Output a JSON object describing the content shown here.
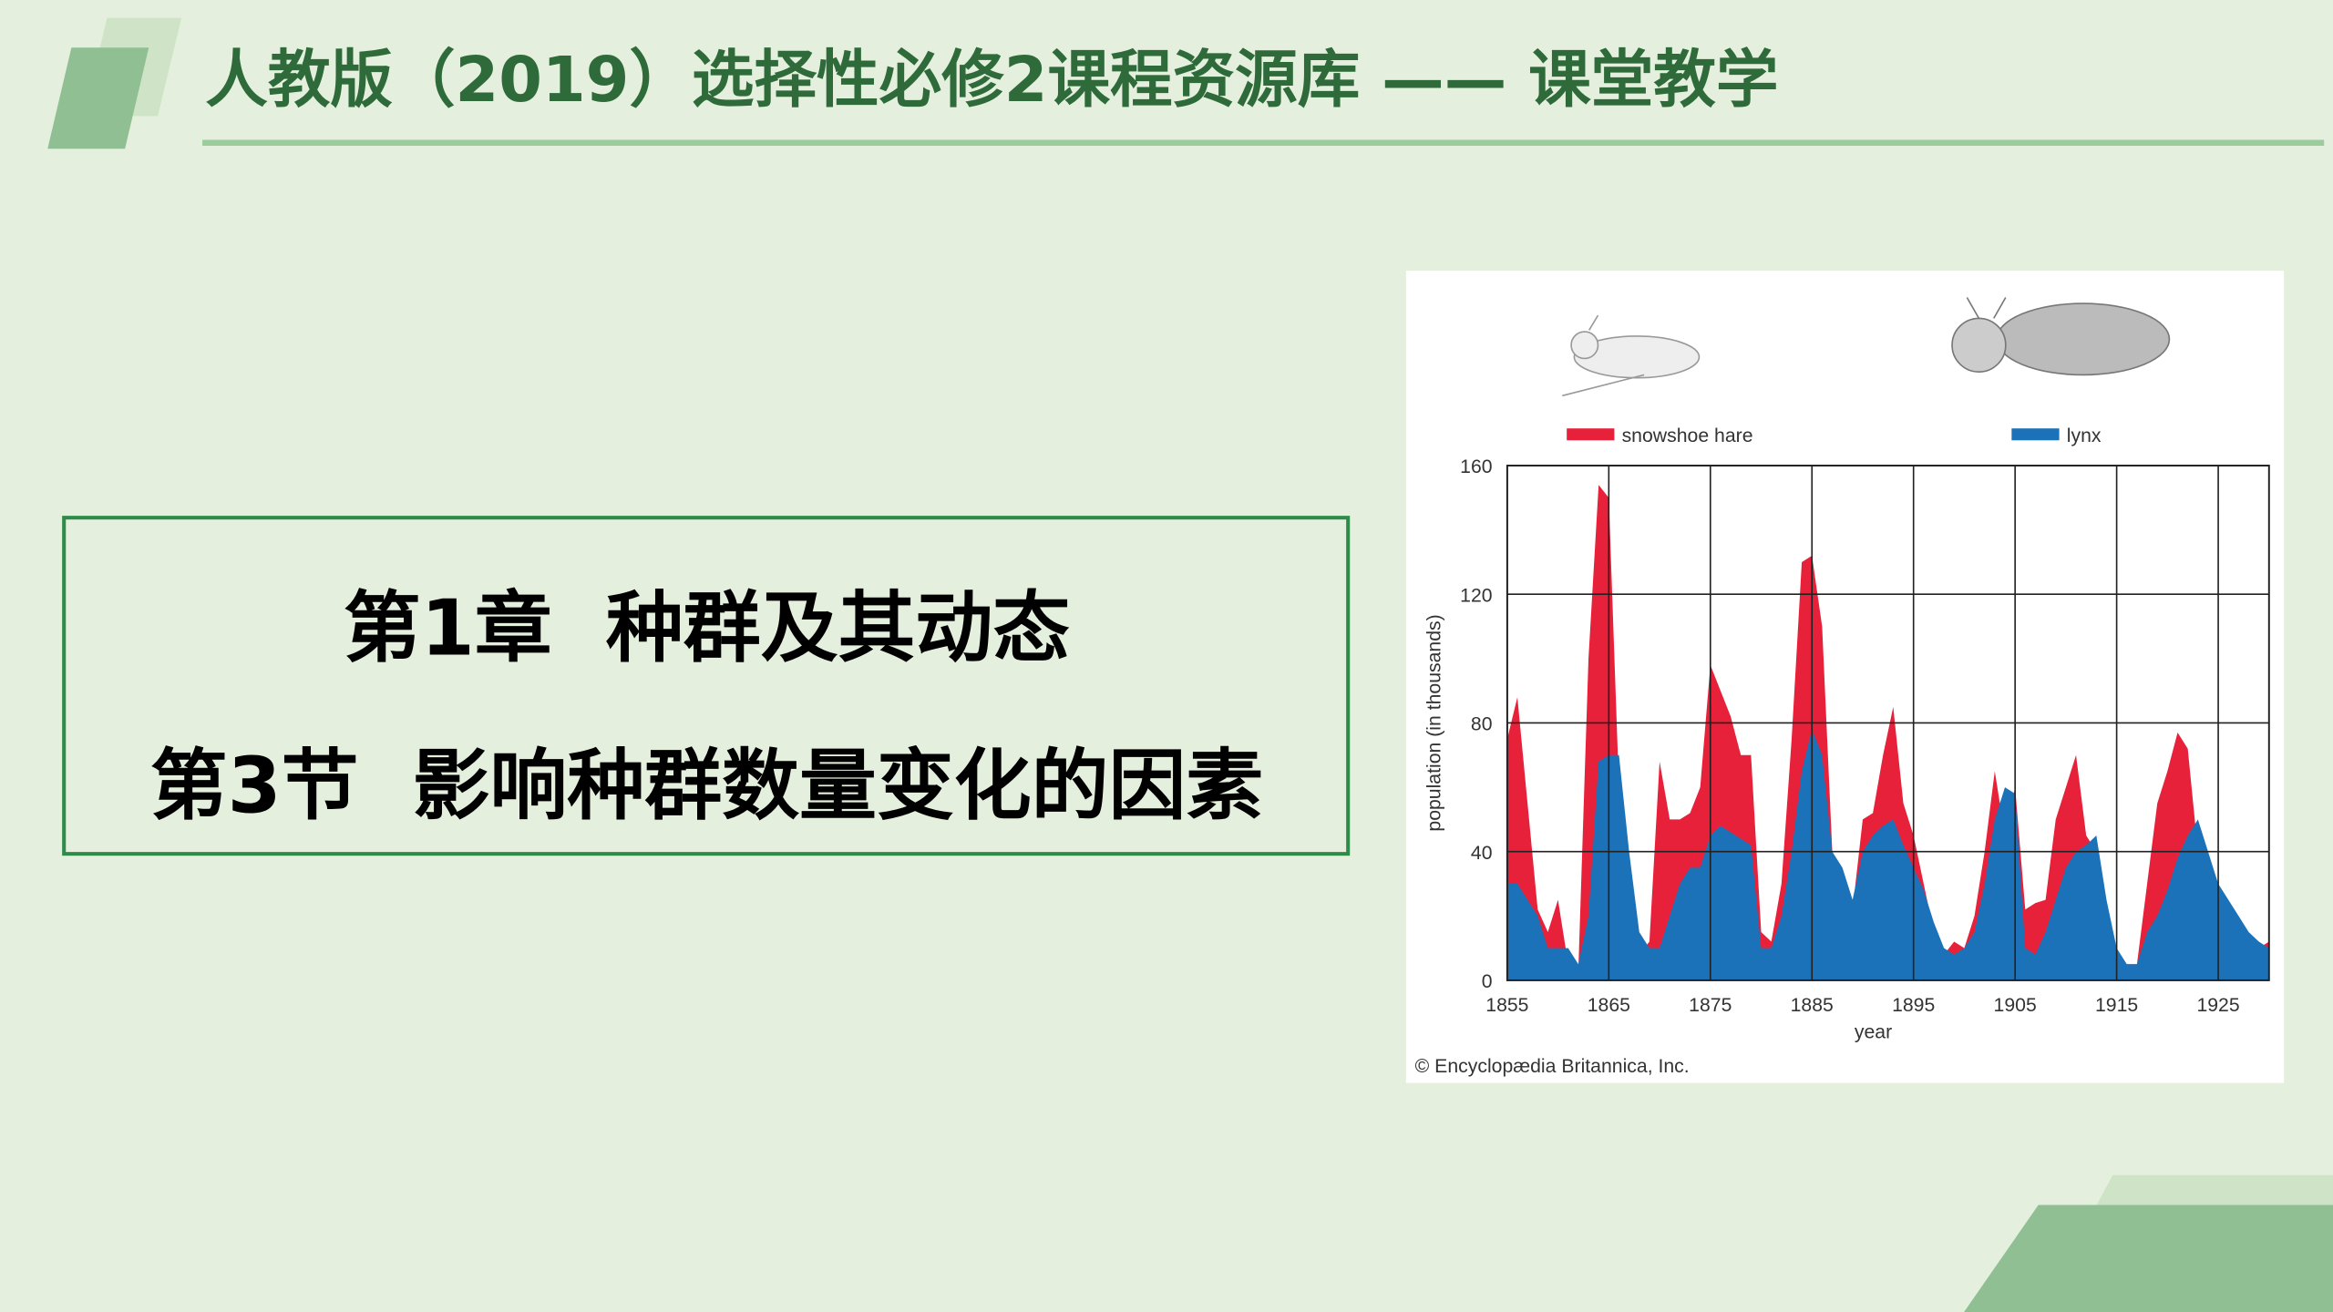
{
  "header": {
    "title": "人教版（2019）选择性必修2课程资源库 —— 课堂教学"
  },
  "box": {
    "line1": "第1章  种群及其动态",
    "line2": "第3节  影响种群数量变化的因素"
  },
  "chart_data": {
    "type": "area",
    "xlabel": "year",
    "ylabel": "population (in thousands)",
    "credit": "© Encyclopædia Britannica, Inc.",
    "x": [
      1855,
      1856,
      1857,
      1858,
      1859,
      1860,
      1861,
      1862,
      1863,
      1864,
      1865,
      1866,
      1867,
      1868,
      1869,
      1870,
      1871,
      1872,
      1873,
      1874,
      1875,
      1876,
      1877,
      1878,
      1879,
      1880,
      1881,
      1882,
      1883,
      1884,
      1885,
      1886,
      1887,
      1888,
      1889,
      1890,
      1891,
      1892,
      1893,
      1894,
      1895,
      1896,
      1897,
      1898,
      1899,
      1900,
      1901,
      1902,
      1903,
      1904,
      1905,
      1906,
      1907,
      1908,
      1909,
      1910,
      1911,
      1912,
      1913,
      1914,
      1915,
      1916,
      1917,
      1918,
      1919,
      1920,
      1921,
      1922,
      1923,
      1924,
      1925,
      1926,
      1927,
      1928,
      1929,
      1930
    ],
    "series": [
      {
        "name": "snowshoe hare",
        "color": "#e8213a",
        "values": [
          75,
          88,
          55,
          22,
          15,
          25,
          5,
          3,
          100,
          154,
          150,
          60,
          10,
          8,
          12,
          68,
          50,
          50,
          52,
          60,
          98,
          90,
          82,
          70,
          70,
          15,
          12,
          30,
          75,
          130,
          132,
          110,
          40,
          30,
          22,
          50,
          52,
          70,
          85,
          55,
          45,
          30,
          15,
          8,
          12,
          10,
          20,
          40,
          65,
          45,
          60,
          22,
          24,
          25,
          50,
          60,
          70,
          45,
          40,
          20,
          5,
          5,
          5,
          30,
          55,
          65,
          77,
          72,
          40,
          30,
          20,
          15,
          10,
          10,
          10,
          12
        ]
      },
      {
        "name": "lynx",
        "color": "#1b72b8",
        "values": [
          30,
          30,
          25,
          20,
          10,
          10,
          10,
          5,
          20,
          68,
          70,
          70,
          40,
          15,
          10,
          10,
          20,
          30,
          35,
          35,
          45,
          48,
          46,
          44,
          42,
          10,
          10,
          20,
          40,
          65,
          78,
          70,
          40,
          35,
          25,
          40,
          45,
          48,
          50,
          42,
          35,
          28,
          18,
          10,
          8,
          10,
          15,
          30,
          50,
          60,
          58,
          10,
          8,
          15,
          25,
          35,
          40,
          42,
          45,
          25,
          10,
          5,
          5,
          15,
          20,
          28,
          38,
          45,
          50,
          40,
          30,
          25,
          20,
          15,
          12,
          10
        ]
      }
    ],
    "xlim": [
      1855,
      1930
    ],
    "ylim": [
      0,
      160
    ],
    "xticks": [
      1855,
      1865,
      1875,
      1885,
      1895,
      1905,
      1915,
      1925
    ],
    "yticks": [
      0,
      40,
      80,
      120,
      160
    ],
    "grid": true
  }
}
